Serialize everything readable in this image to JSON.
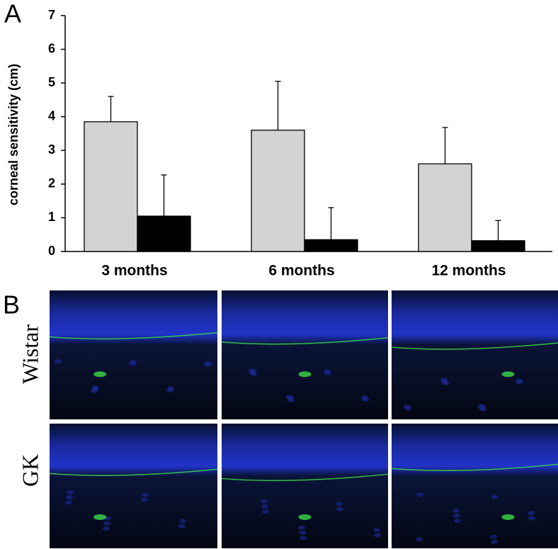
{
  "chart_data": {
    "type": "bar",
    "panel_label": "A",
    "y_label": "corneal sensitivity (cm)",
    "categories": [
      "3 months",
      "6 months",
      "12 months"
    ],
    "series": [
      {
        "color": "#d3d3d3",
        "values": [
          3.85,
          3.6,
          2.6
        ],
        "errors": [
          0.75,
          1.45,
          1.08
        ]
      },
      {
        "color": "#000000",
        "values": [
          1.05,
          0.35,
          0.32
        ],
        "errors": [
          1.22,
          0.95,
          0.6
        ]
      }
    ],
    "ylim": [
      0,
      7
    ],
    "yticks": [
      0,
      1,
      2,
      3,
      4,
      5,
      6,
      7
    ]
  },
  "panel_b": {
    "panel_label": "B",
    "row_labels": [
      "Wistar",
      "GK"
    ]
  }
}
